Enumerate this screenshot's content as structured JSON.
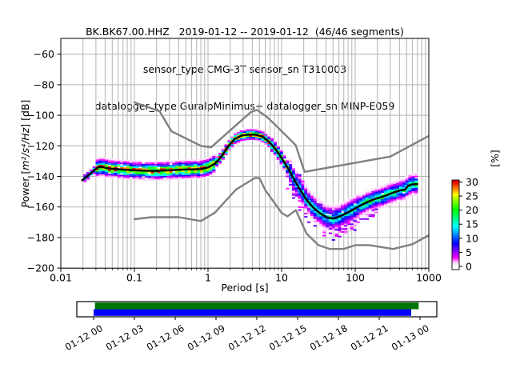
{
  "title": {
    "line1": "BK.BK67.00.HHZ   2019-01-12 -- 2019-01-12  (46/46 segments)",
    "line2": "sensor_type CMG-3T sensor_sn T310003",
    "line3": "datalogger_type GuralpMinimus+ datalogger_sn MINP-E059"
  },
  "x_axis": {
    "label": "Period [s]",
    "ticks": [
      0.01,
      0.1,
      1,
      10,
      100,
      1000
    ],
    "min": 0.01,
    "max": 1000,
    "scale": "log"
  },
  "y_axis": {
    "label_prefix": "Power [",
    "label_math": "m²/s⁴/Hz",
    "label_suffix": "] [dB]",
    "ticks": [
      -60,
      -80,
      -100,
      -120,
      -140,
      -160,
      -180,
      -200
    ],
    "min": -200,
    "max": -50
  },
  "colorbar": {
    "label": "[%]",
    "ticks": [
      0,
      5,
      10,
      15,
      20,
      25,
      30
    ],
    "min": 0,
    "max": 30,
    "colormap": "pqlx",
    "stops": [
      [
        0.0,
        "#ffffff"
      ],
      [
        0.05,
        "#fdc9fd"
      ],
      [
        0.1,
        "#ff00ff"
      ],
      [
        0.18,
        "#8000ff"
      ],
      [
        0.27,
        "#0000ff"
      ],
      [
        0.37,
        "#0080ff"
      ],
      [
        0.47,
        "#00ffff"
      ],
      [
        0.57,
        "#00ff80"
      ],
      [
        0.67,
        "#00ff00"
      ],
      [
        0.77,
        "#80ff00"
      ],
      [
        0.85,
        "#ffff00"
      ],
      [
        0.92,
        "#ff8000"
      ],
      [
        1.0,
        "#e00000"
      ]
    ]
  },
  "chart_data": {
    "type": "heatmap",
    "title": "BK.BK67.00.HHZ 2019-01-12 -- 2019-01-12 (46/46 segments)",
    "xlabel": "Period [s]",
    "ylabel": "Power [m²/s⁴/Hz] [dB]",
    "xscale": "log",
    "xlim": [
      0.01,
      1000
    ],
    "ylim": [
      -200,
      -50
    ],
    "grid": true,
    "legend": "colorbar-right 0-30 percent",
    "mode_line": {
      "name": "psd-mode",
      "color": "#000000",
      "points": [
        [
          0.0195,
          -142.5
        ],
        [
          0.022,
          -140.5
        ],
        [
          0.025,
          -138.5
        ],
        [
          0.028,
          -136.2
        ],
        [
          0.032,
          -133.9
        ],
        [
          0.037,
          -134.0
        ],
        [
          0.045,
          -134.8
        ],
        [
          0.06,
          -135.3
        ],
        [
          0.08,
          -135.7
        ],
        [
          0.1,
          -136.0
        ],
        [
          0.14,
          -136.3
        ],
        [
          0.2,
          -136.4
        ],
        [
          0.3,
          -136.0
        ],
        [
          0.42,
          -135.6
        ],
        [
          0.6,
          -135.4
        ],
        [
          0.8,
          -135.2
        ],
        [
          1.0,
          -134.2
        ],
        [
          1.25,
          -131.5
        ],
        [
          1.55,
          -126.5
        ],
        [
          1.9,
          -120.0
        ],
        [
          2.3,
          -115.5
        ],
        [
          2.9,
          -113.2
        ],
        [
          3.6,
          -112.6
        ],
        [
          4.5,
          -112.7
        ],
        [
          5.5,
          -114.0
        ],
        [
          6.8,
          -117.5
        ],
        [
          8.2,
          -122.0
        ],
        [
          10,
          -128.0
        ],
        [
          12.5,
          -135.5
        ],
        [
          15,
          -142.5
        ],
        [
          18,
          -149.0
        ],
        [
          22,
          -155.5
        ],
        [
          27,
          -160.5
        ],
        [
          33,
          -164.0
        ],
        [
          41,
          -166.8
        ],
        [
          50,
          -167.6
        ],
        [
          62,
          -166.2
        ],
        [
          75,
          -164.2
        ],
        [
          90,
          -162.2
        ],
        [
          110,
          -159.8
        ],
        [
          140,
          -157.2
        ],
        [
          175,
          -155.2
        ],
        [
          215,
          -153.8
        ],
        [
          260,
          -152.6
        ],
        [
          330,
          -150.6
        ],
        [
          420,
          -149.0
        ],
        [
          480,
          -148.6
        ],
        [
          520,
          -146.2
        ],
        [
          600,
          -145.2
        ],
        [
          700,
          -145.0
        ]
      ]
    },
    "noise_models": {
      "color": "#808080",
      "upper": [
        [
          0.1,
          -91.5
        ],
        [
          0.22,
          -97.4
        ],
        [
          0.32,
          -110.5
        ],
        [
          0.8,
          -120.0
        ],
        [
          1.1,
          -121.0
        ],
        [
          3.8,
          -98.0
        ],
        [
          4.6,
          -96.5
        ],
        [
          6.3,
          -101.0
        ],
        [
          7.9,
          -105.5
        ],
        [
          15.5,
          -119.5
        ],
        [
          20.5,
          -137.0
        ],
        [
          300,
          -127.0
        ],
        [
          1000,
          -113.5
        ]
      ],
      "lower": [
        [
          0.1,
          -168.0
        ],
        [
          0.17,
          -166.7
        ],
        [
          0.4,
          -166.7
        ],
        [
          0.8,
          -169.2
        ],
        [
          1.24,
          -163.7
        ],
        [
          2.4,
          -148.6
        ],
        [
          4.3,
          -141.1
        ],
        [
          5.0,
          -141.1
        ],
        [
          6.0,
          -149.0
        ],
        [
          10,
          -163.8
        ],
        [
          12,
          -166.2
        ],
        [
          15.6,
          -162.1
        ],
        [
          21.9,
          -177.5
        ],
        [
          31.6,
          -185.0
        ],
        [
          45,
          -187.5
        ],
        [
          70,
          -187.5
        ],
        [
          101,
          -185.0
        ],
        [
          154,
          -185.0
        ],
        [
          328,
          -187.5
        ],
        [
          600,
          -184.4
        ],
        [
          1000,
          -178.5
        ]
      ]
    },
    "histogram": {
      "units": "percent, 0-30, colored via pqlx colormap, 1 dB cells",
      "bins_per_decade": 24,
      "band": [
        {
          "p_from": 0.019,
          "p_to": 0.03,
          "sigma": 1.2,
          "peak": 16
        },
        {
          "p_from": 0.03,
          "p_to": 1.2,
          "sigma": 2.3,
          "peak": 27
        },
        {
          "p_from": 1.2,
          "p_to": 7.0,
          "sigma": 1.4,
          "peak": 30
        },
        {
          "p_from": 7.0,
          "p_to": 13.0,
          "sigma": 2.0,
          "peak": 22
        },
        {
          "p_from": 13.0,
          "p_to": 110.0,
          "sigma": 3.4,
          "peak": 14
        },
        {
          "p_from": 110.0,
          "p_to": 730.0,
          "sigma": 2.8,
          "peak": 17
        }
      ],
      "outliers": [
        {
          "p_from": 11,
          "p_to": 100,
          "dv_from": -14,
          "dv_to": -5,
          "prob": 0.22
        },
        {
          "p_from": 14,
          "p_to": 45,
          "dv_from": 4,
          "dv_to": 9,
          "prob": 0.12
        },
        {
          "p_from": 55,
          "p_to": 210,
          "dv_from": -11,
          "dv_to": -7,
          "prob": 0.4
        }
      ]
    }
  },
  "timeline": {
    "labels": [
      "01-12 00",
      "01-12 03",
      "01-12 06",
      "01-12 09",
      "01-12 12",
      "01-12 15",
      "01-12 18",
      "01-12 21",
      "01-13 00"
    ],
    "hours_total": 24,
    "green_bar": {
      "color": "#007400",
      "start_hour": 0.1,
      "end_hour": 23.9
    },
    "blue_bar": {
      "color": "#0000ff",
      "start_hour": 0.0,
      "end_hour": 23.35
    }
  }
}
